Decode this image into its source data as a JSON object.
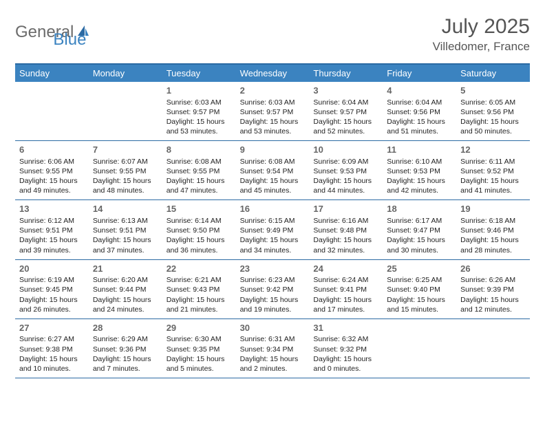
{
  "logo": {
    "general": "General",
    "blue": "Blue",
    "icon_color": "#2b6aa3"
  },
  "title": {
    "month": "July 2025",
    "location": "Villedomer, France"
  },
  "colors": {
    "header_bg": "#3b83c0",
    "border": "#2b6aa3",
    "text": "#333333",
    "logo_gray": "#6b6b6b",
    "logo_blue": "#3b83c0"
  },
  "dayNames": [
    "Sunday",
    "Monday",
    "Tuesday",
    "Wednesday",
    "Thursday",
    "Friday",
    "Saturday"
  ],
  "weeks": [
    [
      null,
      null,
      {
        "d": "1",
        "sr": "6:03 AM",
        "ss": "9:57 PM",
        "dl": "15 hours and 53 minutes."
      },
      {
        "d": "2",
        "sr": "6:03 AM",
        "ss": "9:57 PM",
        "dl": "15 hours and 53 minutes."
      },
      {
        "d": "3",
        "sr": "6:04 AM",
        "ss": "9:57 PM",
        "dl": "15 hours and 52 minutes."
      },
      {
        "d": "4",
        "sr": "6:04 AM",
        "ss": "9:56 PM",
        "dl": "15 hours and 51 minutes."
      },
      {
        "d": "5",
        "sr": "6:05 AM",
        "ss": "9:56 PM",
        "dl": "15 hours and 50 minutes."
      }
    ],
    [
      {
        "d": "6",
        "sr": "6:06 AM",
        "ss": "9:55 PM",
        "dl": "15 hours and 49 minutes."
      },
      {
        "d": "7",
        "sr": "6:07 AM",
        "ss": "9:55 PM",
        "dl": "15 hours and 48 minutes."
      },
      {
        "d": "8",
        "sr": "6:08 AM",
        "ss": "9:55 PM",
        "dl": "15 hours and 47 minutes."
      },
      {
        "d": "9",
        "sr": "6:08 AM",
        "ss": "9:54 PM",
        "dl": "15 hours and 45 minutes."
      },
      {
        "d": "10",
        "sr": "6:09 AM",
        "ss": "9:53 PM",
        "dl": "15 hours and 44 minutes."
      },
      {
        "d": "11",
        "sr": "6:10 AM",
        "ss": "9:53 PM",
        "dl": "15 hours and 42 minutes."
      },
      {
        "d": "12",
        "sr": "6:11 AM",
        "ss": "9:52 PM",
        "dl": "15 hours and 41 minutes."
      }
    ],
    [
      {
        "d": "13",
        "sr": "6:12 AM",
        "ss": "9:51 PM",
        "dl": "15 hours and 39 minutes."
      },
      {
        "d": "14",
        "sr": "6:13 AM",
        "ss": "9:51 PM",
        "dl": "15 hours and 37 minutes."
      },
      {
        "d": "15",
        "sr": "6:14 AM",
        "ss": "9:50 PM",
        "dl": "15 hours and 36 minutes."
      },
      {
        "d": "16",
        "sr": "6:15 AM",
        "ss": "9:49 PM",
        "dl": "15 hours and 34 minutes."
      },
      {
        "d": "17",
        "sr": "6:16 AM",
        "ss": "9:48 PM",
        "dl": "15 hours and 32 minutes."
      },
      {
        "d": "18",
        "sr": "6:17 AM",
        "ss": "9:47 PM",
        "dl": "15 hours and 30 minutes."
      },
      {
        "d": "19",
        "sr": "6:18 AM",
        "ss": "9:46 PM",
        "dl": "15 hours and 28 minutes."
      }
    ],
    [
      {
        "d": "20",
        "sr": "6:19 AM",
        "ss": "9:45 PM",
        "dl": "15 hours and 26 minutes."
      },
      {
        "d": "21",
        "sr": "6:20 AM",
        "ss": "9:44 PM",
        "dl": "15 hours and 24 minutes."
      },
      {
        "d": "22",
        "sr": "6:21 AM",
        "ss": "9:43 PM",
        "dl": "15 hours and 21 minutes."
      },
      {
        "d": "23",
        "sr": "6:23 AM",
        "ss": "9:42 PM",
        "dl": "15 hours and 19 minutes."
      },
      {
        "d": "24",
        "sr": "6:24 AM",
        "ss": "9:41 PM",
        "dl": "15 hours and 17 minutes."
      },
      {
        "d": "25",
        "sr": "6:25 AM",
        "ss": "9:40 PM",
        "dl": "15 hours and 15 minutes."
      },
      {
        "d": "26",
        "sr": "6:26 AM",
        "ss": "9:39 PM",
        "dl": "15 hours and 12 minutes."
      }
    ],
    [
      {
        "d": "27",
        "sr": "6:27 AM",
        "ss": "9:38 PM",
        "dl": "15 hours and 10 minutes."
      },
      {
        "d": "28",
        "sr": "6:29 AM",
        "ss": "9:36 PM",
        "dl": "15 hours and 7 minutes."
      },
      {
        "d": "29",
        "sr": "6:30 AM",
        "ss": "9:35 PM",
        "dl": "15 hours and 5 minutes."
      },
      {
        "d": "30",
        "sr": "6:31 AM",
        "ss": "9:34 PM",
        "dl": "15 hours and 2 minutes."
      },
      {
        "d": "31",
        "sr": "6:32 AM",
        "ss": "9:32 PM",
        "dl": "15 hours and 0 minutes."
      },
      null,
      null
    ]
  ],
  "labels": {
    "sunrise": "Sunrise:",
    "sunset": "Sunset:",
    "daylight": "Daylight:"
  }
}
